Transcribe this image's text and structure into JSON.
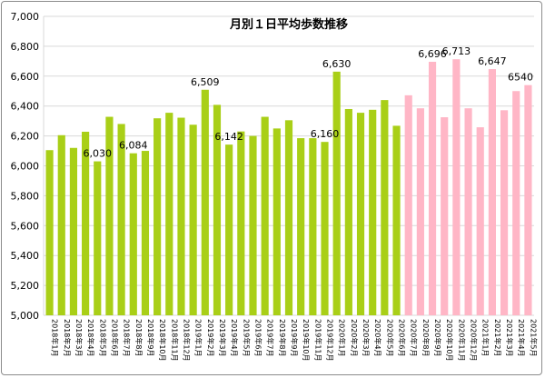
{
  "chart_data": {
    "type": "bar",
    "title": "月別１日平均歩数推移",
    "xlabel": "",
    "ylabel": "",
    "ylim": [
      5000,
      7000
    ],
    "y_ticks": [
      "5,000",
      "5,200",
      "5,400",
      "5,600",
      "5,800",
      "6,000",
      "6,200",
      "6,400",
      "6,600",
      "6,800",
      "7,000"
    ],
    "grid": true,
    "legend": "none",
    "colors": {
      "green": "#a9cf17",
      "pink": "#ffb6c6",
      "grid": "#d9d9d9"
    },
    "categories": [
      "2018年1月",
      "2018年2月",
      "2018年3月",
      "2018年4月",
      "2018年5月",
      "2018年6月",
      "2018年7月",
      "2018年8月",
      "2018年9月",
      "2018年10月",
      "2018年11月",
      "2018年12月",
      "2019年1月",
      "2019年2月",
      "2019年3月",
      "2019年4月",
      "2019年5月",
      "2019年6月",
      "2019年7月",
      "2019年8月",
      "2019年9月",
      "2019年10月",
      "2019年11月",
      "2019年12月",
      "2020年1月",
      "2020年2月",
      "2020年3月",
      "2020年4月",
      "2020年5月",
      "2020年6月",
      "2020年7月",
      "2020年8月",
      "2020年9月",
      "2020年10月",
      "2020年11月",
      "2020年12月",
      "2021年1月",
      "2021年2月",
      "2021年3月",
      "2021年4月",
      "2021年5月"
    ],
    "values": [
      6105,
      6205,
      6120,
      6228,
      6030,
      6328,
      6280,
      6084,
      6100,
      6318,
      6355,
      6322,
      6275,
      6509,
      6408,
      6142,
      6230,
      6200,
      6328,
      6250,
      6305,
      6185,
      6185,
      6160,
      6630,
      6380,
      6355,
      6375,
      6440,
      6268,
      6472,
      6385,
      6696,
      6325,
      6713,
      6385,
      6258,
      6647,
      6372,
      6500,
      6540
    ],
    "bar_colors": [
      "green",
      "green",
      "green",
      "green",
      "green",
      "green",
      "green",
      "green",
      "green",
      "green",
      "green",
      "green",
      "green",
      "green",
      "green",
      "green",
      "green",
      "green",
      "green",
      "green",
      "green",
      "green",
      "green",
      "green",
      "green",
      "green",
      "green",
      "green",
      "green",
      "green",
      "pink",
      "pink",
      "pink",
      "pink",
      "pink",
      "pink",
      "pink",
      "pink",
      "pink",
      "pink",
      "pink"
    ],
    "data_labels": {
      "4": "6,030",
      "7": "6,084",
      "13": "6,509",
      "15": "6,142",
      "23": "6,160",
      "24": "6,630",
      "32": "6,696",
      "34": "6,713",
      "37": "6,647",
      "40": "6540"
    }
  }
}
